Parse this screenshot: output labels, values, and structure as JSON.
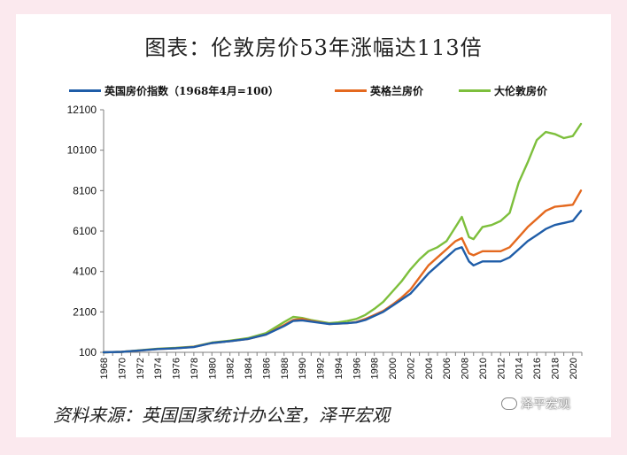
{
  "chart_data": {
    "type": "line",
    "title": "图表：伦敦房价53年涨幅达113倍",
    "ylim": [
      100,
      12100
    ],
    "yticks": [
      100,
      2100,
      4100,
      6100,
      8100,
      10100,
      12100
    ],
    "xlim": [
      1968,
      2021
    ],
    "xticks": [
      1968,
      1970,
      1972,
      1974,
      1976,
      1978,
      1980,
      1982,
      1984,
      1986,
      1988,
      1990,
      1992,
      1994,
      1996,
      1998,
      2000,
      2002,
      2004,
      2006,
      2008,
      2010,
      2012,
      2014,
      2016,
      2018,
      2020
    ],
    "grid": false,
    "legend_position": "top",
    "x": [
      1968,
      1970,
      1972,
      1974,
      1976,
      1978,
      1980,
      1982,
      1984,
      1986,
      1988,
      1989,
      1990,
      1991,
      1992,
      1993,
      1994,
      1995,
      1996,
      1997,
      1998,
      1999,
      2000,
      2001,
      2002,
      2003,
      2004,
      2005,
      2006,
      2007,
      2007.7,
      2008.5,
      2009,
      2010,
      2011,
      2012,
      2013,
      2014,
      2015,
      2016,
      2017,
      2018,
      2019,
      2020,
      2020.9
    ],
    "series": [
      {
        "name": "英国房价指数（1968年4月=100）",
        "color": "#1f5da8",
        "values": [
          100,
          120,
          190,
          260,
          300,
          360,
          560,
          650,
          760,
          980,
          1400,
          1650,
          1680,
          1620,
          1560,
          1500,
          1520,
          1540,
          1580,
          1700,
          1900,
          2100,
          2400,
          2700,
          3000,
          3500,
          4000,
          4400,
          4800,
          5200,
          5300,
          4600,
          4400,
          4600,
          4600,
          4600,
          4800,
          5200,
          5600,
          5900,
          6200,
          6400,
          6500,
          6600,
          7100
        ]
      },
      {
        "name": "英格兰房价",
        "color": "#e4691f",
        "values": [
          100,
          120,
          190,
          260,
          300,
          370,
          560,
          650,
          760,
          980,
          1450,
          1700,
          1750,
          1650,
          1580,
          1500,
          1520,
          1540,
          1600,
          1750,
          1950,
          2150,
          2450,
          2800,
          3200,
          3800,
          4400,
          4800,
          5200,
          5600,
          5750,
          5000,
          4900,
          5100,
          5100,
          5100,
          5300,
          5800,
          6300,
          6700,
          7100,
          7300,
          7350,
          7400,
          8100
        ]
      },
      {
        "name": "大伦敦房价",
        "color": "#7dbf3c",
        "values": [
          100,
          120,
          200,
          280,
          320,
          380,
          580,
          680,
          800,
          1050,
          1600,
          1850,
          1800,
          1700,
          1620,
          1540,
          1580,
          1650,
          1750,
          1950,
          2250,
          2600,
          3100,
          3600,
          4200,
          4700,
          5100,
          5300,
          5600,
          6300,
          6800,
          5800,
          5700,
          6300,
          6400,
          6600,
          7000,
          8500,
          9500,
          10600,
          11000,
          10900,
          10700,
          10800,
          11400
        ]
      }
    ]
  },
  "source_note": "资料来源：英国国家统计办公室，泽平宏观",
  "watermark_text": "泽平宏观"
}
